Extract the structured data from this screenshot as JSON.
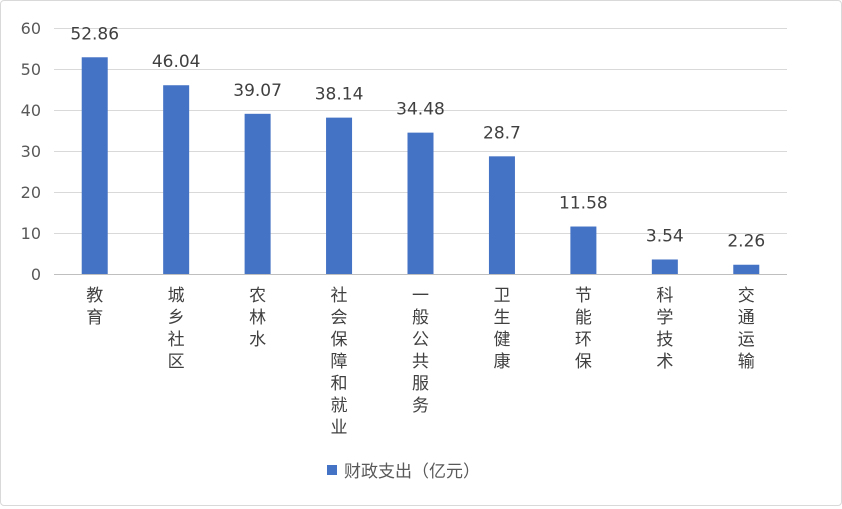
{
  "chart_data": {
    "type": "bar",
    "categories": [
      "教育",
      "城乡社区",
      "农林水",
      "社会保障和就业",
      "一般公共服务",
      "卫生健康",
      "节能环保",
      "科学技术",
      "交通运输"
    ],
    "series": [
      {
        "name": "财政支出（亿元）",
        "values": [
          52.86,
          46.04,
          39.07,
          38.14,
          34.48,
          28.7,
          11.58,
          3.54,
          2.26
        ],
        "labels": [
          "52.86",
          "46.04",
          "39.07",
          "38.14",
          "34.48",
          "28.7",
          "11.58",
          "3.54",
          "2.26"
        ],
        "color": "#4472c4"
      }
    ],
    "title": "",
    "xlabel": "",
    "ylabel": "",
    "ylim": [
      0,
      60
    ],
    "yticks": [
      0,
      10,
      20,
      30,
      40,
      50,
      60
    ],
    "grid": true,
    "legend_position": "bottom",
    "colors": {
      "bar": "#4472c4",
      "grid": "#d9d9d9",
      "axis": "#bfbfbf"
    }
  }
}
